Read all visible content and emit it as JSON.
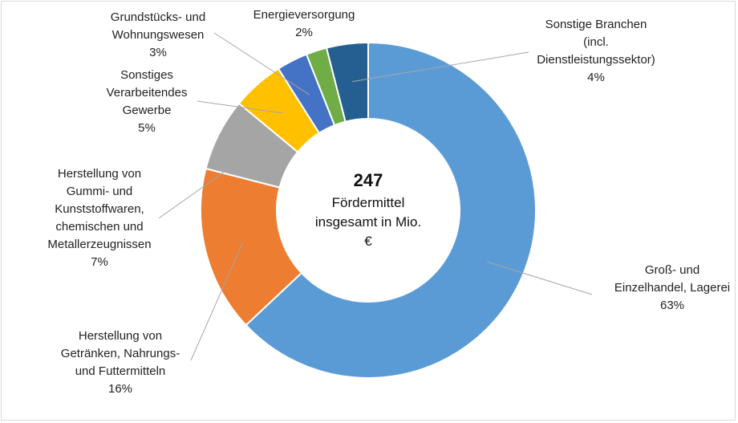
{
  "chart_data": {
    "type": "pie",
    "variant": "doughnut",
    "center_text": {
      "total": "247",
      "lines": [
        "Fördermittel",
        "insgesamt in Mio.",
        "€"
      ]
    },
    "slices": [
      {
        "label_lines": [
          "Groß- und",
          "Einzelhandel, Lagerei"
        ],
        "value_label": "63%",
        "value": 63,
        "color": "#5B9BD5"
      },
      {
        "label_lines": [
          "Herstellung von",
          "Getränken, Nahrungs-",
          "und Futtermitteln"
        ],
        "value_label": "16%",
        "value": 16,
        "color": "#ED7D31"
      },
      {
        "label_lines": [
          "Herstellung von",
          "Gummi- und",
          "Kunststoffwaren,",
          "chemischen und",
          "Metallerzeugnissen"
        ],
        "value_label": "7%",
        "value": 7,
        "color": "#A5A5A5"
      },
      {
        "label_lines": [
          "Sonstiges",
          "Verarbeitendes",
          "Gewerbe"
        ],
        "value_label": "5%",
        "value": 5,
        "color": "#FFC000"
      },
      {
        "label_lines": [
          "Grundstücks- und",
          "Wohnungswesen"
        ],
        "value_label": "3%",
        "value": 3,
        "color": "#4472C4"
      },
      {
        "label_lines": [
          "Energieversorgung"
        ],
        "value_label": "2%",
        "value": 2,
        "color": "#70AD47"
      },
      {
        "label_lines": [
          "Sonstige Branchen",
          "(incl.",
          "Dienstleistungssektor)"
        ],
        "value_label": "4%",
        "value": 4,
        "color": "#255E91"
      }
    ]
  }
}
